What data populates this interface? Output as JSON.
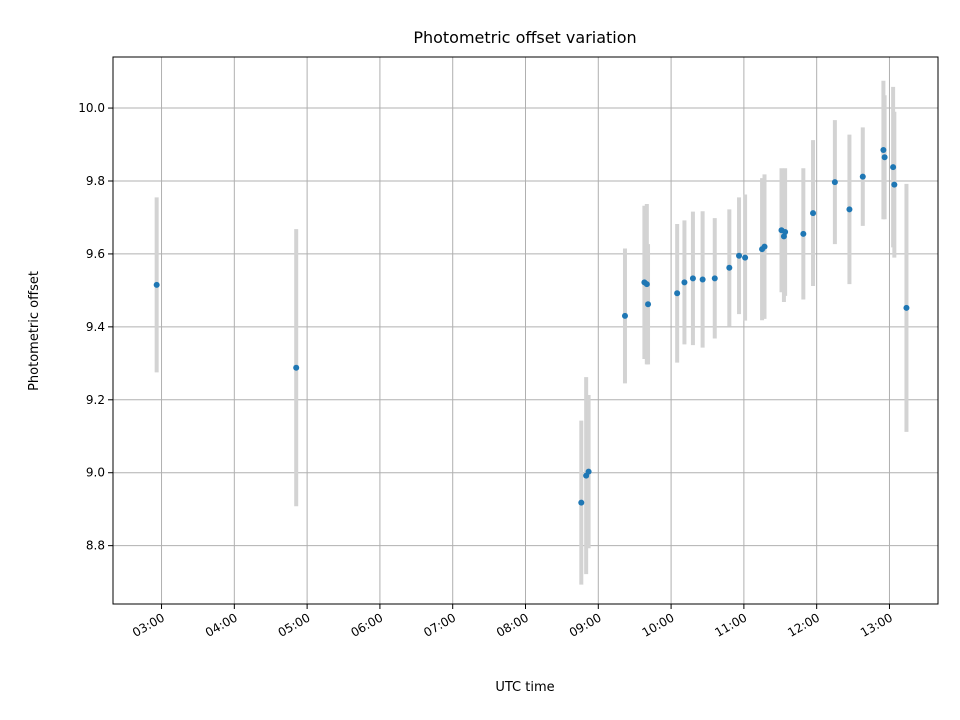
{
  "chart_data": {
    "type": "scatter",
    "title": "Photometric offset variation",
    "xlabel": "UTC time",
    "ylabel": "Photometric offset",
    "x_unit": "hours UTC",
    "xlim": [
      "02:20",
      "13:40"
    ],
    "ylim": [
      8.64,
      10.14
    ],
    "x_ticks": [
      "03:00",
      "04:00",
      "05:00",
      "06:00",
      "07:00",
      "08:00",
      "09:00",
      "10:00",
      "11:00",
      "12:00",
      "13:00"
    ],
    "y_ticks": [
      "8.8",
      "9.0",
      "9.2",
      "9.4",
      "9.6",
      "9.8",
      "10.0"
    ],
    "grid": true,
    "legend": "none",
    "colors": {
      "points": "#1f77b4",
      "errorbars": "#d3d3d3",
      "grid": "#b0b0b0"
    },
    "points": [
      {
        "t": "02:56",
        "y": 9.515,
        "err": 0.24
      },
      {
        "t": "04:51",
        "y": 9.288,
        "err": 0.38
      },
      {
        "t": "08:46",
        "y": 8.918,
        "err": 0.225
      },
      {
        "t": "08:50",
        "y": 8.992,
        "err": 0.27
      },
      {
        "t": "08:52",
        "y": 9.003,
        "err": 0.21
      },
      {
        "t": "09:22",
        "y": 9.43,
        "err": 0.185
      },
      {
        "t": "09:38",
        "y": 9.522,
        "err": 0.21
      },
      {
        "t": "09:40",
        "y": 9.517,
        "err": 0.22
      },
      {
        "t": "09:41",
        "y": 9.462,
        "err": 0.165
      },
      {
        "t": "10:05",
        "y": 9.492,
        "err": 0.19
      },
      {
        "t": "10:11",
        "y": 9.522,
        "err": 0.17
      },
      {
        "t": "10:18",
        "y": 9.533,
        "err": 0.183
      },
      {
        "t": "10:26",
        "y": 9.53,
        "err": 0.187
      },
      {
        "t": "10:36",
        "y": 9.533,
        "err": 0.165
      },
      {
        "t": "10:48",
        "y": 9.562,
        "err": 0.16
      },
      {
        "t": "10:56",
        "y": 9.595,
        "err": 0.16
      },
      {
        "t": "11:01",
        "y": 9.59,
        "err": 0.173
      },
      {
        "t": "11:15",
        "y": 9.613,
        "err": 0.195
      },
      {
        "t": "11:17",
        "y": 9.62,
        "err": 0.198
      },
      {
        "t": "11:31",
        "y": 9.665,
        "err": 0.17
      },
      {
        "t": "11:33",
        "y": 9.648,
        "err": 0.18
      },
      {
        "t": "11:34",
        "y": 9.66,
        "err": 0.175
      },
      {
        "t": "11:49",
        "y": 9.655,
        "err": 0.18
      },
      {
        "t": "11:57",
        "y": 9.712,
        "err": 0.2
      },
      {
        "t": "12:15",
        "y": 9.797,
        "err": 0.17
      },
      {
        "t": "12:27",
        "y": 9.722,
        "err": 0.205
      },
      {
        "t": "12:38",
        "y": 9.812,
        "err": 0.135
      },
      {
        "t": "12:55",
        "y": 9.885,
        "err": 0.19
      },
      {
        "t": "12:56",
        "y": 9.865,
        "err": 0.17
      },
      {
        "t": "13:03",
        "y": 9.838,
        "err": 0.22
      },
      {
        "t": "13:04",
        "y": 9.79,
        "err": 0.2
      },
      {
        "t": "13:14",
        "y": 9.452,
        "err": 0.34
      }
    ]
  }
}
